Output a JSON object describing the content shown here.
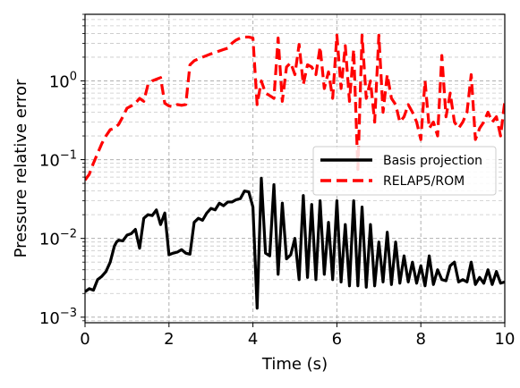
{
  "chart_data": {
    "type": "line",
    "xlabel": "Time (s)",
    "ylabel": "Pressure relative error",
    "xlim": [
      0,
      10
    ],
    "ylim": [
      0.00085,
      7.0
    ],
    "yscale": "log",
    "xticks": [
      0,
      2,
      4,
      6,
      8,
      10
    ],
    "xtick_labels": [
      "0",
      "2",
      "4",
      "6",
      "8",
      "10"
    ],
    "yticks": [
      0.001,
      0.01,
      0.1,
      1.0
    ],
    "ytick_labels": [
      {
        "base": "10",
        "exp": "−3"
      },
      {
        "base": "10",
        "exp": "−2"
      },
      {
        "base": "10",
        "exp": "−1"
      },
      {
        "base": "10",
        "exp": "0"
      }
    ],
    "grid": true,
    "legend_position": "center-right",
    "series": [
      {
        "name": "Basis projection",
        "color": "#000000",
        "style": "solid",
        "x": [
          0.0,
          0.1,
          0.2,
          0.3,
          0.4,
          0.5,
          0.6,
          0.7,
          0.75,
          0.8,
          0.9,
          1.0,
          1.1,
          1.2,
          1.3,
          1.4,
          1.5,
          1.6,
          1.7,
          1.8,
          1.9,
          2.0,
          2.1,
          2.2,
          2.3,
          2.4,
          2.5,
          2.6,
          2.7,
          2.8,
          2.9,
          3.0,
          3.1,
          3.2,
          3.3,
          3.4,
          3.5,
          3.6,
          3.7,
          3.8,
          3.9,
          4.0,
          4.1,
          4.2,
          4.3,
          4.4,
          4.5,
          4.6,
          4.7,
          4.8,
          4.9,
          5.0,
          5.1,
          5.2,
          5.3,
          5.4,
          5.5,
          5.6,
          5.7,
          5.8,
          5.9,
          6.0,
          6.1,
          6.2,
          6.3,
          6.4,
          6.5,
          6.6,
          6.7,
          6.8,
          6.9,
          7.0,
          7.1,
          7.2,
          7.3,
          7.4,
          7.5,
          7.6,
          7.7,
          7.8,
          7.9,
          8.0,
          8.1,
          8.2,
          8.3,
          8.4,
          8.5,
          8.6,
          8.7,
          8.8,
          8.9,
          9.0,
          9.1,
          9.2,
          9.3,
          9.4,
          9.5,
          9.6,
          9.7,
          9.8,
          9.9,
          10.0
        ],
        "y": [
          0.0021,
          0.0023,
          0.0022,
          0.003,
          0.0033,
          0.0038,
          0.005,
          0.008,
          0.009,
          0.0095,
          0.0093,
          0.011,
          0.0115,
          0.013,
          0.0075,
          0.018,
          0.02,
          0.0195,
          0.023,
          0.015,
          0.021,
          0.0062,
          0.0065,
          0.0067,
          0.0072,
          0.0065,
          0.0063,
          0.016,
          0.018,
          0.017,
          0.021,
          0.024,
          0.023,
          0.028,
          0.026,
          0.029,
          0.029,
          0.031,
          0.032,
          0.04,
          0.039,
          0.025,
          0.0013,
          0.058,
          0.0065,
          0.006,
          0.048,
          0.0035,
          0.028,
          0.0055,
          0.0062,
          0.01,
          0.003,
          0.035,
          0.0032,
          0.027,
          0.003,
          0.03,
          0.0035,
          0.016,
          0.003,
          0.03,
          0.0028,
          0.015,
          0.0025,
          0.03,
          0.0025,
          0.025,
          0.0024,
          0.015,
          0.0025,
          0.009,
          0.0028,
          0.012,
          0.0026,
          0.009,
          0.0027,
          0.006,
          0.0028,
          0.005,
          0.0027,
          0.0045,
          0.0025,
          0.006,
          0.0026,
          0.004,
          0.003,
          0.0029,
          0.0045,
          0.005,
          0.0028,
          0.003,
          0.0028,
          0.005,
          0.0026,
          0.0032,
          0.0027,
          0.004,
          0.0026,
          0.0038,
          0.0027,
          0.0028
        ],
        "label_note": ""
      },
      {
        "name": "RELAP5/ROM",
        "color": "#ff0000",
        "style": "dashed",
        "x": [
          0.0,
          0.1,
          0.2,
          0.3,
          0.4,
          0.5,
          0.6,
          0.7,
          0.8,
          0.9,
          1.0,
          1.1,
          1.2,
          1.3,
          1.4,
          1.5,
          1.6,
          1.7,
          1.8,
          1.9,
          2.0,
          2.1,
          2.2,
          2.3,
          2.4,
          2.5,
          2.6,
          2.7,
          2.8,
          2.9,
          3.0,
          3.1,
          3.2,
          3.3,
          3.4,
          3.5,
          3.6,
          3.7,
          3.8,
          3.9,
          4.0,
          4.1,
          4.2,
          4.3,
          4.4,
          4.5,
          4.6,
          4.7,
          4.8,
          4.9,
          5.0,
          5.1,
          5.2,
          5.3,
          5.4,
          5.5,
          5.6,
          5.7,
          5.8,
          5.9,
          6.0,
          6.1,
          6.2,
          6.3,
          6.4,
          6.5,
          6.6,
          6.7,
          6.8,
          6.9,
          7.0,
          7.1,
          7.2,
          7.3,
          7.4,
          7.5,
          7.6,
          7.7,
          7.8,
          7.9,
          8.0,
          8.1,
          8.2,
          8.3,
          8.4,
          8.5,
          8.6,
          8.7,
          8.8,
          8.9,
          9.0,
          9.1,
          9.2,
          9.3,
          9.4,
          9.5,
          9.6,
          9.7,
          9.8,
          9.9,
          10.0
        ],
        "y": [
          0.055,
          0.065,
          0.09,
          0.12,
          0.16,
          0.2,
          0.24,
          0.25,
          0.28,
          0.35,
          0.45,
          0.48,
          0.52,
          0.6,
          0.55,
          0.9,
          1.0,
          1.05,
          1.1,
          0.52,
          0.48,
          0.47,
          0.5,
          0.49,
          0.5,
          1.6,
          1.8,
          1.9,
          2.0,
          2.1,
          2.2,
          2.3,
          2.4,
          2.5,
          2.6,
          3.0,
          3.3,
          3.5,
          3.6,
          3.6,
          3.5,
          0.5,
          1.0,
          0.7,
          0.65,
          0.6,
          3.5,
          0.55,
          1.5,
          1.7,
          1.2,
          2.9,
          0.9,
          1.6,
          1.5,
          1.2,
          2.7,
          0.8,
          1.3,
          0.6,
          3.8,
          0.8,
          2.8,
          0.55,
          2.5,
          0.075,
          3.8,
          0.6,
          1.0,
          0.3,
          3.8,
          0.4,
          1.2,
          0.6,
          0.5,
          0.3,
          0.35,
          0.5,
          0.4,
          0.3,
          0.18,
          1.0,
          0.25,
          0.3,
          0.2,
          2.1,
          0.35,
          0.7,
          0.3,
          0.25,
          0.3,
          0.4,
          1.2,
          0.18,
          0.25,
          0.3,
          0.4,
          0.3,
          0.35,
          0.2,
          0.55
        ]
      }
    ]
  }
}
